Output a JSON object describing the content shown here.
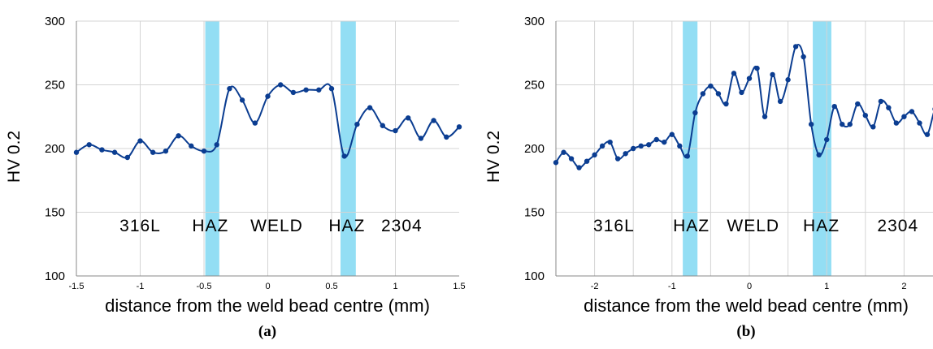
{
  "colors": {
    "line": "#0b3d91",
    "marker": "#0b3d91",
    "haz_band": "#80d8f2",
    "grid": "#d4d4d4",
    "axis": "#888888",
    "text": "#000000"
  },
  "chart_data": [
    {
      "type": "line",
      "panel_label": "(a)",
      "ylabel": "HV 0.2",
      "xlabel": "distance from the weld bead centre (mm)",
      "xlim": [
        -1.5,
        1.5
      ],
      "ylim": [
        100,
        300
      ],
      "x_ticks": [
        -1.5,
        -1,
        -0.5,
        0,
        0.5,
        1,
        1.5
      ],
      "x_tick_labels": [
        "-1.5",
        "-1",
        "-0.5",
        "0",
        "0.5",
        "1",
        "1.5"
      ],
      "y_ticks": [
        100,
        150,
        200,
        250,
        300
      ],
      "y_tick_labels": [
        "100",
        "150",
        "200",
        "250",
        "300"
      ],
      "x_gridlines": [
        -1,
        -0.5,
        0,
        0.5,
        1
      ],
      "y_gridlines": [
        150,
        200,
        250,
        300
      ],
      "haz_bands": [
        [
          -0.49,
          -0.38
        ],
        [
          0.57,
          0.69
        ]
      ],
      "region_labels": [
        {
          "text": "316L",
          "x": -1.0
        },
        {
          "text": "HAZ",
          "x": -0.45
        },
        {
          "text": "WELD",
          "x": 0.07
        },
        {
          "text": "HAZ",
          "x": 0.62
        },
        {
          "text": "2304",
          "x": 1.05
        }
      ],
      "region_label_y": 140,
      "series": [
        {
          "x": [
            -1.5,
            -1.4,
            -1.3,
            -1.2,
            -1.1,
            -1.0,
            -0.9,
            -0.8,
            -0.7,
            -0.6,
            -0.5,
            -0.4,
            -0.3,
            -0.2,
            -0.1,
            0.0,
            0.1,
            0.2,
            0.3,
            0.4,
            0.5,
            0.6,
            0.7,
            0.8,
            0.9,
            1.0,
            1.1,
            1.2,
            1.3,
            1.4,
            1.5
          ],
          "y": [
            197,
            203,
            199,
            197,
            193,
            206,
            197,
            198,
            210,
            202,
            198,
            203,
            247,
            238,
            220,
            241,
            250,
            244,
            246,
            246,
            247,
            194,
            219,
            232,
            218,
            214,
            224,
            208,
            222,
            209,
            217
          ]
        }
      ]
    },
    {
      "type": "line",
      "panel_label": "(b)",
      "ylabel": "HV 0.2",
      "xlabel": "distance from the weld bead centre (mm)",
      "xlim": [
        -2.5,
        2.5
      ],
      "ylim": [
        100,
        300
      ],
      "x_ticks": [
        -2,
        -1,
        0,
        1,
        2
      ],
      "x_tick_labels": [
        "-2",
        "-1",
        "0",
        "1",
        "2"
      ],
      "y_ticks": [
        100,
        150,
        200,
        250,
        300
      ],
      "y_tick_labels": [
        "100",
        "150",
        "200",
        "250",
        "300"
      ],
      "x_gridlines": [
        -2,
        -1.5,
        -1,
        -0.5,
        0,
        0.5,
        1,
        1.5,
        2
      ],
      "y_gridlines": [
        150,
        200,
        250,
        300
      ],
      "haz_bands": [
        [
          -0.86,
          -0.67
        ],
        [
          0.82,
          1.06
        ]
      ],
      "region_labels": [
        {
          "text": "316L",
          "x": -1.75
        },
        {
          "text": "HAZ",
          "x": -0.75
        },
        {
          "text": "WELD",
          "x": 0.05
        },
        {
          "text": "HAZ",
          "x": 0.93
        },
        {
          "text": "2304",
          "x": 1.92
        }
      ],
      "region_label_y": 140,
      "series": [
        {
          "x": [
            -2.5,
            -2.4,
            -2.3,
            -2.2,
            -2.1,
            -2.0,
            -1.9,
            -1.8,
            -1.7,
            -1.6,
            -1.5,
            -1.4,
            -1.3,
            -1.2,
            -1.1,
            -1.0,
            -0.9,
            -0.8,
            -0.7,
            -0.6,
            -0.5,
            -0.4,
            -0.3,
            -0.2,
            -0.1,
            0.0,
            0.1,
            0.2,
            0.3,
            0.4,
            0.5,
            0.6,
            0.7,
            0.8,
            0.9,
            1.0,
            1.1,
            1.2,
            1.3,
            1.4,
            1.5,
            1.6,
            1.7,
            1.8,
            1.9,
            2.0,
            2.1,
            2.2,
            2.3,
            2.4,
            2.5
          ],
          "y": [
            189,
            197,
            192,
            185,
            190,
            195,
            202,
            205,
            192,
            196,
            200,
            202,
            203,
            207,
            205,
            211,
            202,
            194,
            228,
            243,
            249,
            243,
            235,
            259,
            244,
            255,
            263,
            225,
            258,
            237,
            254,
            280,
            272,
            219,
            195,
            207,
            233,
            219,
            219,
            235,
            226,
            217,
            237,
            232,
            220,
            225,
            229,
            220,
            211,
            231,
            236
          ]
        }
      ]
    }
  ]
}
